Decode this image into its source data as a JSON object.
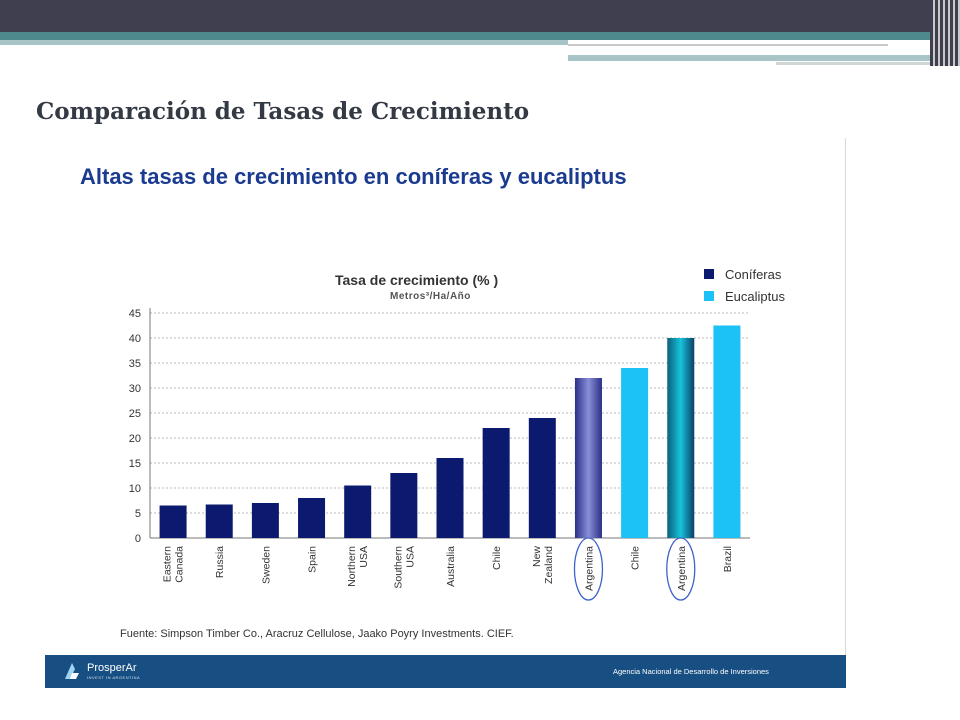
{
  "slide": {
    "title": "Comparación de Tasas de Crecimiento"
  },
  "chart_heading": "Altas tasas de crecimiento en coníferas y eucaliptus",
  "chart_data": {
    "type": "bar",
    "title": "Tasa de crecimiento (% )",
    "subtitle": "Metros³/Ha/Año",
    "xlabel": "",
    "ylabel": "",
    "ylim": [
      0,
      45
    ],
    "yticks": [
      0,
      5,
      10,
      15,
      20,
      25,
      30,
      35,
      40,
      45
    ],
    "grid": true,
    "legend_position": "top-right",
    "categories": [
      "Eastern Canada",
      "Russia",
      "Sweden",
      "Spain",
      "Northern USA",
      "Southern USA",
      "Australia",
      "Chile",
      "New Zealand",
      "Argentina",
      "Chile",
      "Argentina",
      "Brazil"
    ],
    "values": [
      6.5,
      6.7,
      7,
      8,
      10.5,
      13,
      16,
      22,
      24,
      32,
      34,
      40,
      42.5
    ],
    "bar_series": [
      "Coníferas",
      "Coníferas",
      "Coníferas",
      "Coníferas",
      "Coníferas",
      "Coníferas",
      "Coníferas",
      "Coníferas",
      "Coníferas",
      "Coníferas",
      "Eucaliptus",
      "Eucaliptus",
      "Eucaliptus"
    ],
    "highlighted": [
      false,
      false,
      false,
      false,
      false,
      false,
      false,
      false,
      false,
      true,
      false,
      true,
      false
    ],
    "series": [
      {
        "name": "Coníferas",
        "color": "#0b1a6e"
      },
      {
        "name": "Eucaliptus",
        "color": "#1cc2f5"
      }
    ],
    "source": "Fuente: Simpson Timber Co., Aracruz Cellulose, Jaako Poyry Investments. CIEF."
  },
  "footer": {
    "logo_text": "ProsperAr",
    "logo_sub": "INVEST IN ARGENTINA",
    "agency": "Agencia Nacional de Desarrollo de Inversiones"
  }
}
